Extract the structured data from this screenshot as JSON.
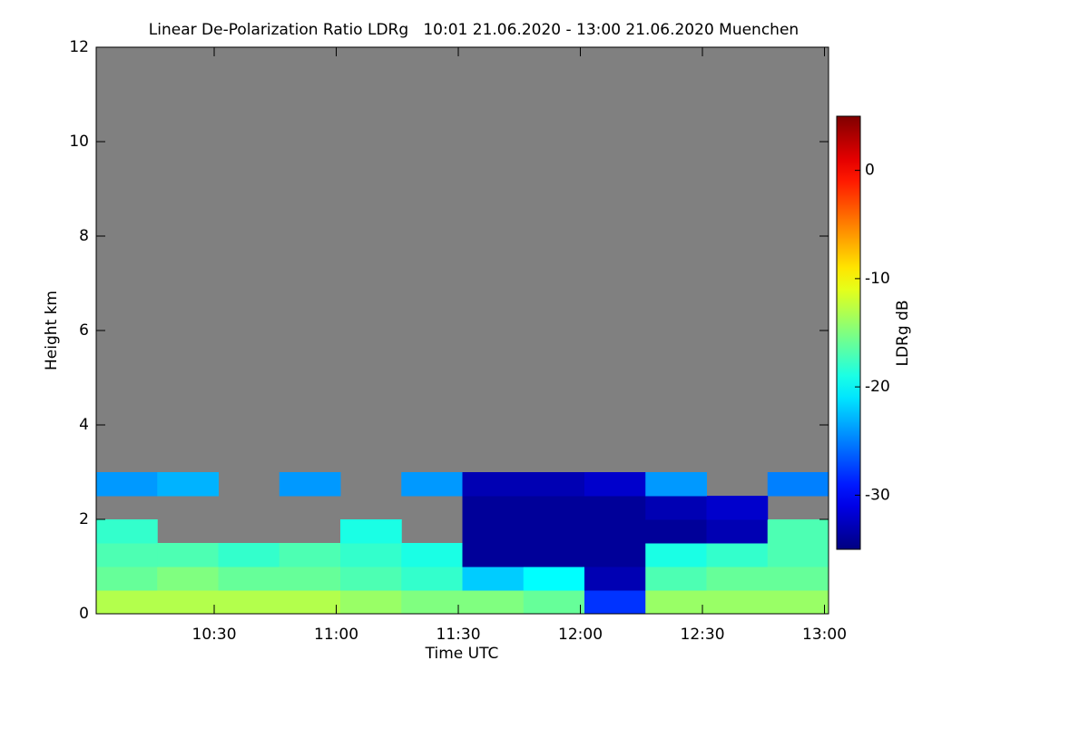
{
  "chart_data": {
    "type": "heatmap",
    "title": "Linear De-Polarization Ratio LDRg   10:01 21.06.2020 - 13:00 21.06.2020 Muenchen",
    "xlabel": "Time UTC",
    "ylabel": "Height km",
    "colorbar_label": "LDRg dB",
    "xlim": [
      601,
      781
    ],
    "ylim": [
      0,
      12
    ],
    "xticks": [
      {
        "value": 630,
        "label": "10:30"
      },
      {
        "value": 660,
        "label": "11:00"
      },
      {
        "value": 690,
        "label": "11:30"
      },
      {
        "value": 720,
        "label": "12:00"
      },
      {
        "value": 750,
        "label": "12:30"
      },
      {
        "value": 780,
        "label": "13:00"
      }
    ],
    "yticks": [
      0,
      2,
      4,
      6,
      8,
      10,
      12
    ],
    "clim": [
      -35,
      5
    ],
    "cticks": [
      -30,
      -20,
      -10,
      0
    ],
    "colormap": "jet",
    "background_color": "#808080",
    "x": [
      601,
      616,
      631,
      646,
      661,
      676,
      691,
      706,
      721,
      736,
      751,
      766,
      781
    ],
    "y": [
      0,
      0.5,
      1,
      1.5,
      2,
      2.5,
      3
    ],
    "z": [
      [
        -13,
        -13,
        -13,
        -13,
        -14,
        -15,
        -15,
        -16,
        -28,
        -14,
        -14,
        -14
      ],
      [
        -16,
        -15,
        -16,
        -16,
        -17,
        -18,
        -22,
        -20,
        -33,
        -17,
        -16,
        -16
      ],
      [
        -17,
        -17,
        -18,
        -17,
        -18,
        -19,
        -34,
        -34,
        -34,
        -19,
        -18,
        -17
      ],
      [
        -18,
        null,
        null,
        null,
        -19,
        null,
        -34,
        -34,
        -34,
        -34,
        -33,
        -17
      ],
      [
        null,
        null,
        null,
        null,
        null,
        null,
        -34,
        -34,
        -34,
        -33,
        -32,
        null
      ],
      [
        -24,
        -23,
        null,
        -24,
        null,
        -24,
        -33,
        -33,
        -32,
        -24,
        null,
        -25
      ]
    ]
  }
}
